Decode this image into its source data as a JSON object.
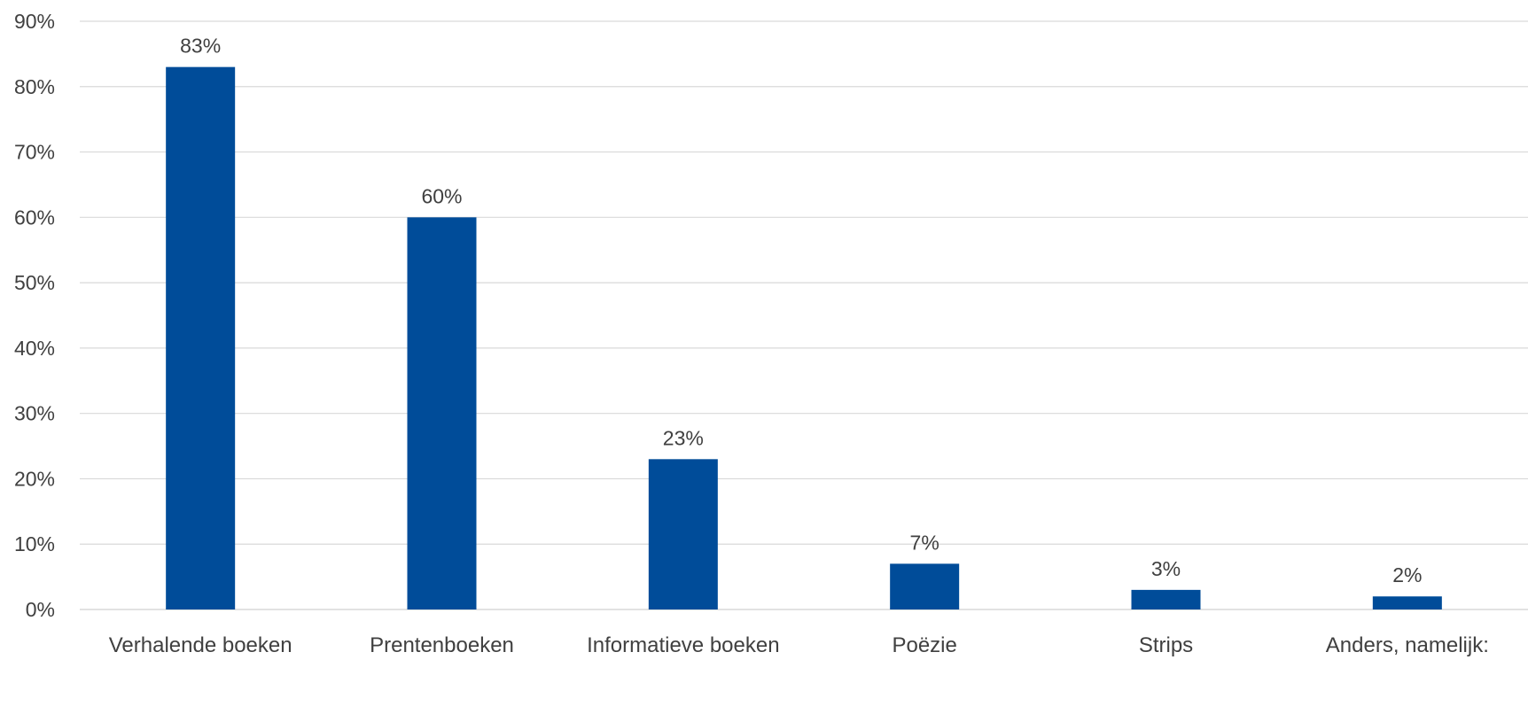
{
  "chart_data": {
    "type": "bar",
    "categories": [
      "Verhalende boeken",
      "Prentenboeken",
      "Informatieve boeken",
      "Poëzie",
      "Strips",
      "Anders, namelijk:"
    ],
    "values": [
      83,
      60,
      23,
      7,
      3,
      2
    ],
    "data_labels": [
      "83%",
      "60%",
      "23%",
      "7%",
      "3%",
      "2%"
    ],
    "title": "",
    "xlabel": "",
    "ylabel": "",
    "ylim": [
      0,
      90
    ],
    "yticks": [
      0,
      10,
      20,
      30,
      40,
      50,
      60,
      70,
      80,
      90
    ],
    "ytick_labels": [
      "0%",
      "10%",
      "20%",
      "30%",
      "40%",
      "50%",
      "60%",
      "70%",
      "80%",
      "90%"
    ],
    "grid": true,
    "legend": "none",
    "bar_color": "#004c99",
    "grid_color": "#d9d9d9",
    "text_color": "#404040"
  }
}
